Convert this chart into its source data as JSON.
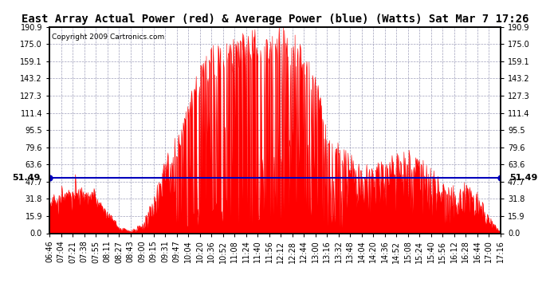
{
  "title": "East Array Actual Power (red) & Average Power (blue) (Watts) Sat Mar 7 17:26",
  "copyright": "Copyright 2009 Cartronics.com",
  "avg_power": 51.49,
  "ylim": [
    0,
    190.9
  ],
  "yticks": [
    0.0,
    15.9,
    31.8,
    47.7,
    63.6,
    79.6,
    95.5,
    111.4,
    127.3,
    143.2,
    159.1,
    175.0,
    190.9
  ],
  "area_color": "#FF0000",
  "line_color": "#0000BB",
  "bg_color": "#FFFFFF",
  "grid_color": "#8888AA",
  "x_labels": [
    "06:46",
    "07:04",
    "07:21",
    "07:38",
    "07:55",
    "08:11",
    "08:27",
    "08:43",
    "09:00",
    "09:15",
    "09:31",
    "09:47",
    "10:04",
    "10:20",
    "10:36",
    "10:52",
    "11:08",
    "11:24",
    "11:40",
    "11:56",
    "12:12",
    "12:28",
    "12:44",
    "13:00",
    "13:16",
    "13:32",
    "13:48",
    "14:04",
    "14:20",
    "14:36",
    "14:52",
    "15:08",
    "15:24",
    "15:40",
    "15:56",
    "16:12",
    "16:28",
    "16:44",
    "17:00",
    "17:16"
  ],
  "envelope": [
    28,
    32,
    35,
    38,
    32,
    18,
    5,
    2,
    8,
    25,
    55,
    80,
    120,
    150,
    170,
    165,
    172,
    178,
    182,
    170,
    185,
    180,
    162,
    145,
    90,
    80,
    68,
    60,
    58,
    62,
    68,
    72,
    65,
    55,
    45,
    40,
    45,
    35,
    15,
    1
  ],
  "title_fontsize": 10,
  "tick_fontsize": 7,
  "annotation_fontsize": 8
}
